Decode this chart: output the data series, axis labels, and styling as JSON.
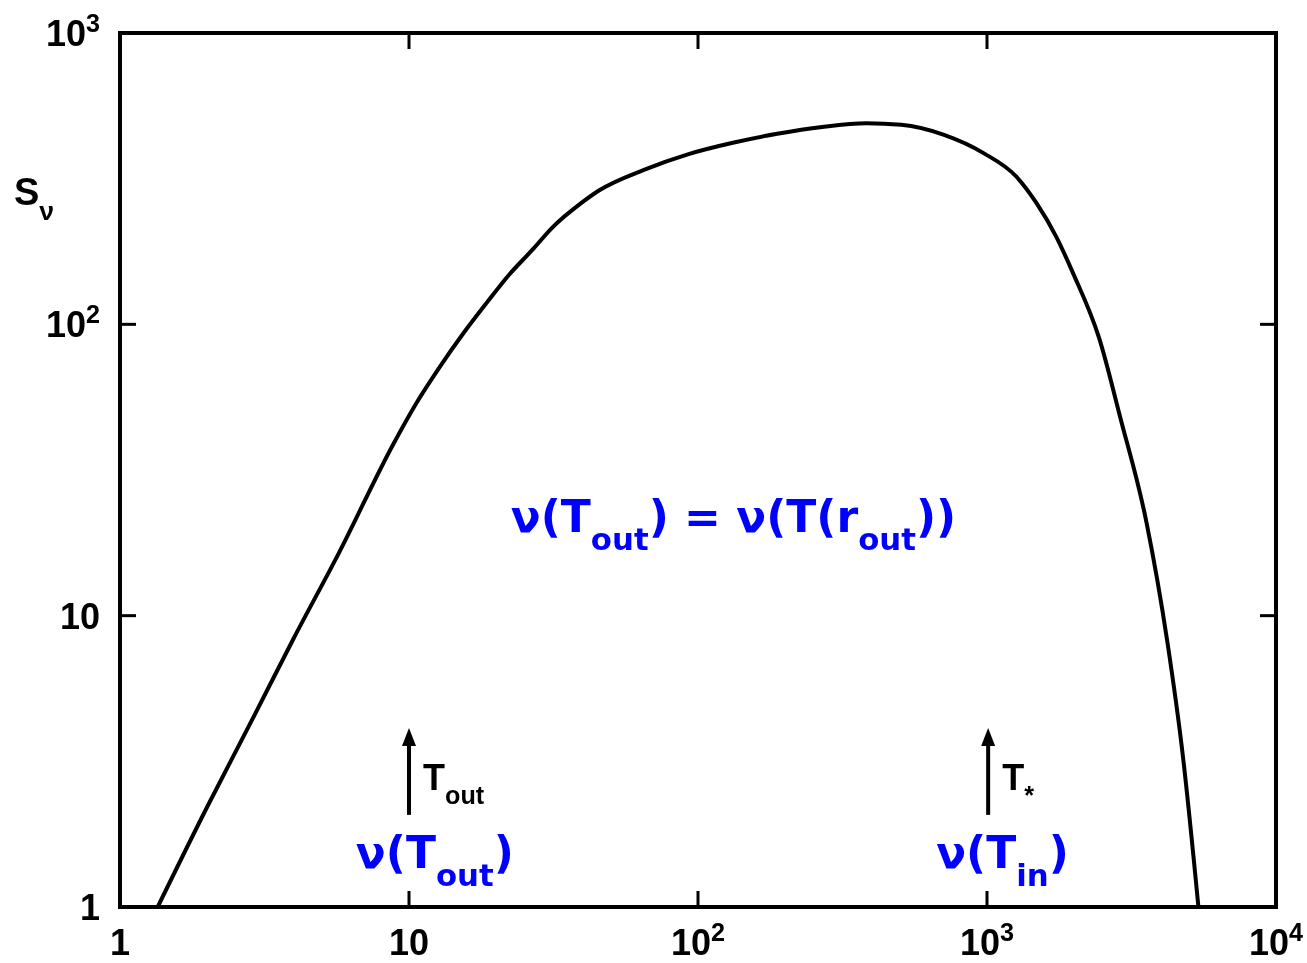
{
  "chart_data": {
    "type": "line",
    "ylabel": "S$_{ν}$",
    "x": [
      1.35,
      2,
      2.8,
      4,
      5.7,
      8.85,
      10.6,
      12.8,
      15.4,
      18.5,
      22.2,
      26.7,
      31.2,
      39.5,
      45.7,
      65,
      92.8,
      132,
      188,
      269,
      383,
      505,
      710,
      973,
      1265,
      1482,
      1735,
      1990,
      2450,
      2890,
      3560,
      4210,
      4770,
      5390
    ],
    "values": [
      1,
      2.2,
      4.2,
      8.4,
      16.3,
      39,
      53.6,
      71.6,
      93,
      118,
      148,
      180,
      214,
      261,
      289,
      339,
      384,
      420,
      451,
      476,
      490,
      484,
      447,
      387,
      321,
      261,
      200,
      149,
      89,
      48,
      21,
      8.1,
      3.25,
      1
    ],
    "color": "#000000",
    "xlim": [
      1,
      10000
    ],
    "ylim": [
      1,
      1000
    ],
    "xticks": [
      1,
      10,
      {
        "value": 100,
        "label": "10$^{2}$"
      },
      {
        "value": 1000,
        "label": "10$^{3}$"
      },
      {
        "value": 10000,
        "label": "10$^{4}$"
      }
    ],
    "yticks": [
      1,
      10,
      {
        "value": 100,
        "label": "10$^{2}$"
      },
      {
        "value": 1000,
        "label": "10$^{3}$"
      }
    ],
    "log": "xy",
    "annotations": [
      "T$_{out}$",
      "ν(T$_{out}$)",
      "T$_{*}$",
      "ν(T$_{in}$)",
      "ν(T$_{out}$) = ν(T(r$_{out}$))"
    ]
  }
}
